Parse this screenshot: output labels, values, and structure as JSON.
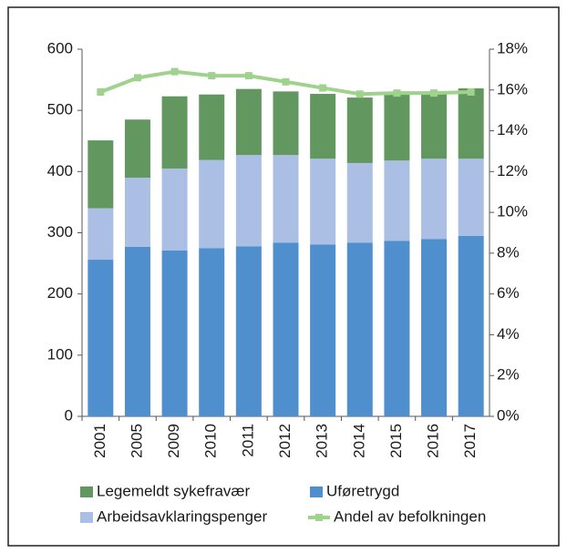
{
  "chart_data": {
    "type": "bar",
    "categories": [
      "2001",
      "2005",
      "2009",
      "2010",
      "2011",
      "2012",
      "2013",
      "2014",
      "2015",
      "2016",
      "2017"
    ],
    "series": [
      {
        "name": "Uføretrygd",
        "color": "#4f8fce",
        "values": [
          256,
          277,
          271,
          275,
          278,
          284,
          281,
          284,
          287,
          290,
          295
        ]
      },
      {
        "name": "Arbeidsavklaringspenger",
        "color": "#aabfe3",
        "values": [
          84,
          113,
          134,
          144,
          149,
          143,
          140,
          130,
          131,
          131,
          126
        ]
      },
      {
        "name": "Legemeldt sykefravær",
        "color": "#62985f",
        "values": [
          111,
          95,
          118,
          107,
          108,
          104,
          106,
          107,
          111,
          108,
          115
        ]
      },
      {
        "name": "Andel av befolkningen",
        "color": "#9fd28c",
        "type": "line",
        "axis": "y2",
        "values": [
          15.9,
          16.6,
          16.9,
          16.7,
          16.7,
          16.4,
          16.1,
          15.8,
          15.85,
          15.85,
          15.9
        ]
      }
    ],
    "stacked": true,
    "ylim": [
      0,
      600
    ],
    "yticks": [
      0,
      100,
      200,
      300,
      400,
      500,
      600
    ],
    "y2lim": [
      0,
      18
    ],
    "y2ticks": [
      {
        "value": 0,
        "label": "0%"
      },
      {
        "value": 2,
        "label": "2%"
      },
      {
        "value": 4,
        "label": "4%"
      },
      {
        "value": 6,
        "label": "6%"
      },
      {
        "value": 8,
        "label": "8%"
      },
      {
        "value": 10,
        "label": "10%"
      },
      {
        "value": 12,
        "label": "12%"
      },
      {
        "value": 14,
        "label": "14%"
      },
      {
        "value": 16,
        "label": "16%"
      },
      {
        "value": 18,
        "label": "18%"
      }
    ],
    "legend": "bottom"
  }
}
